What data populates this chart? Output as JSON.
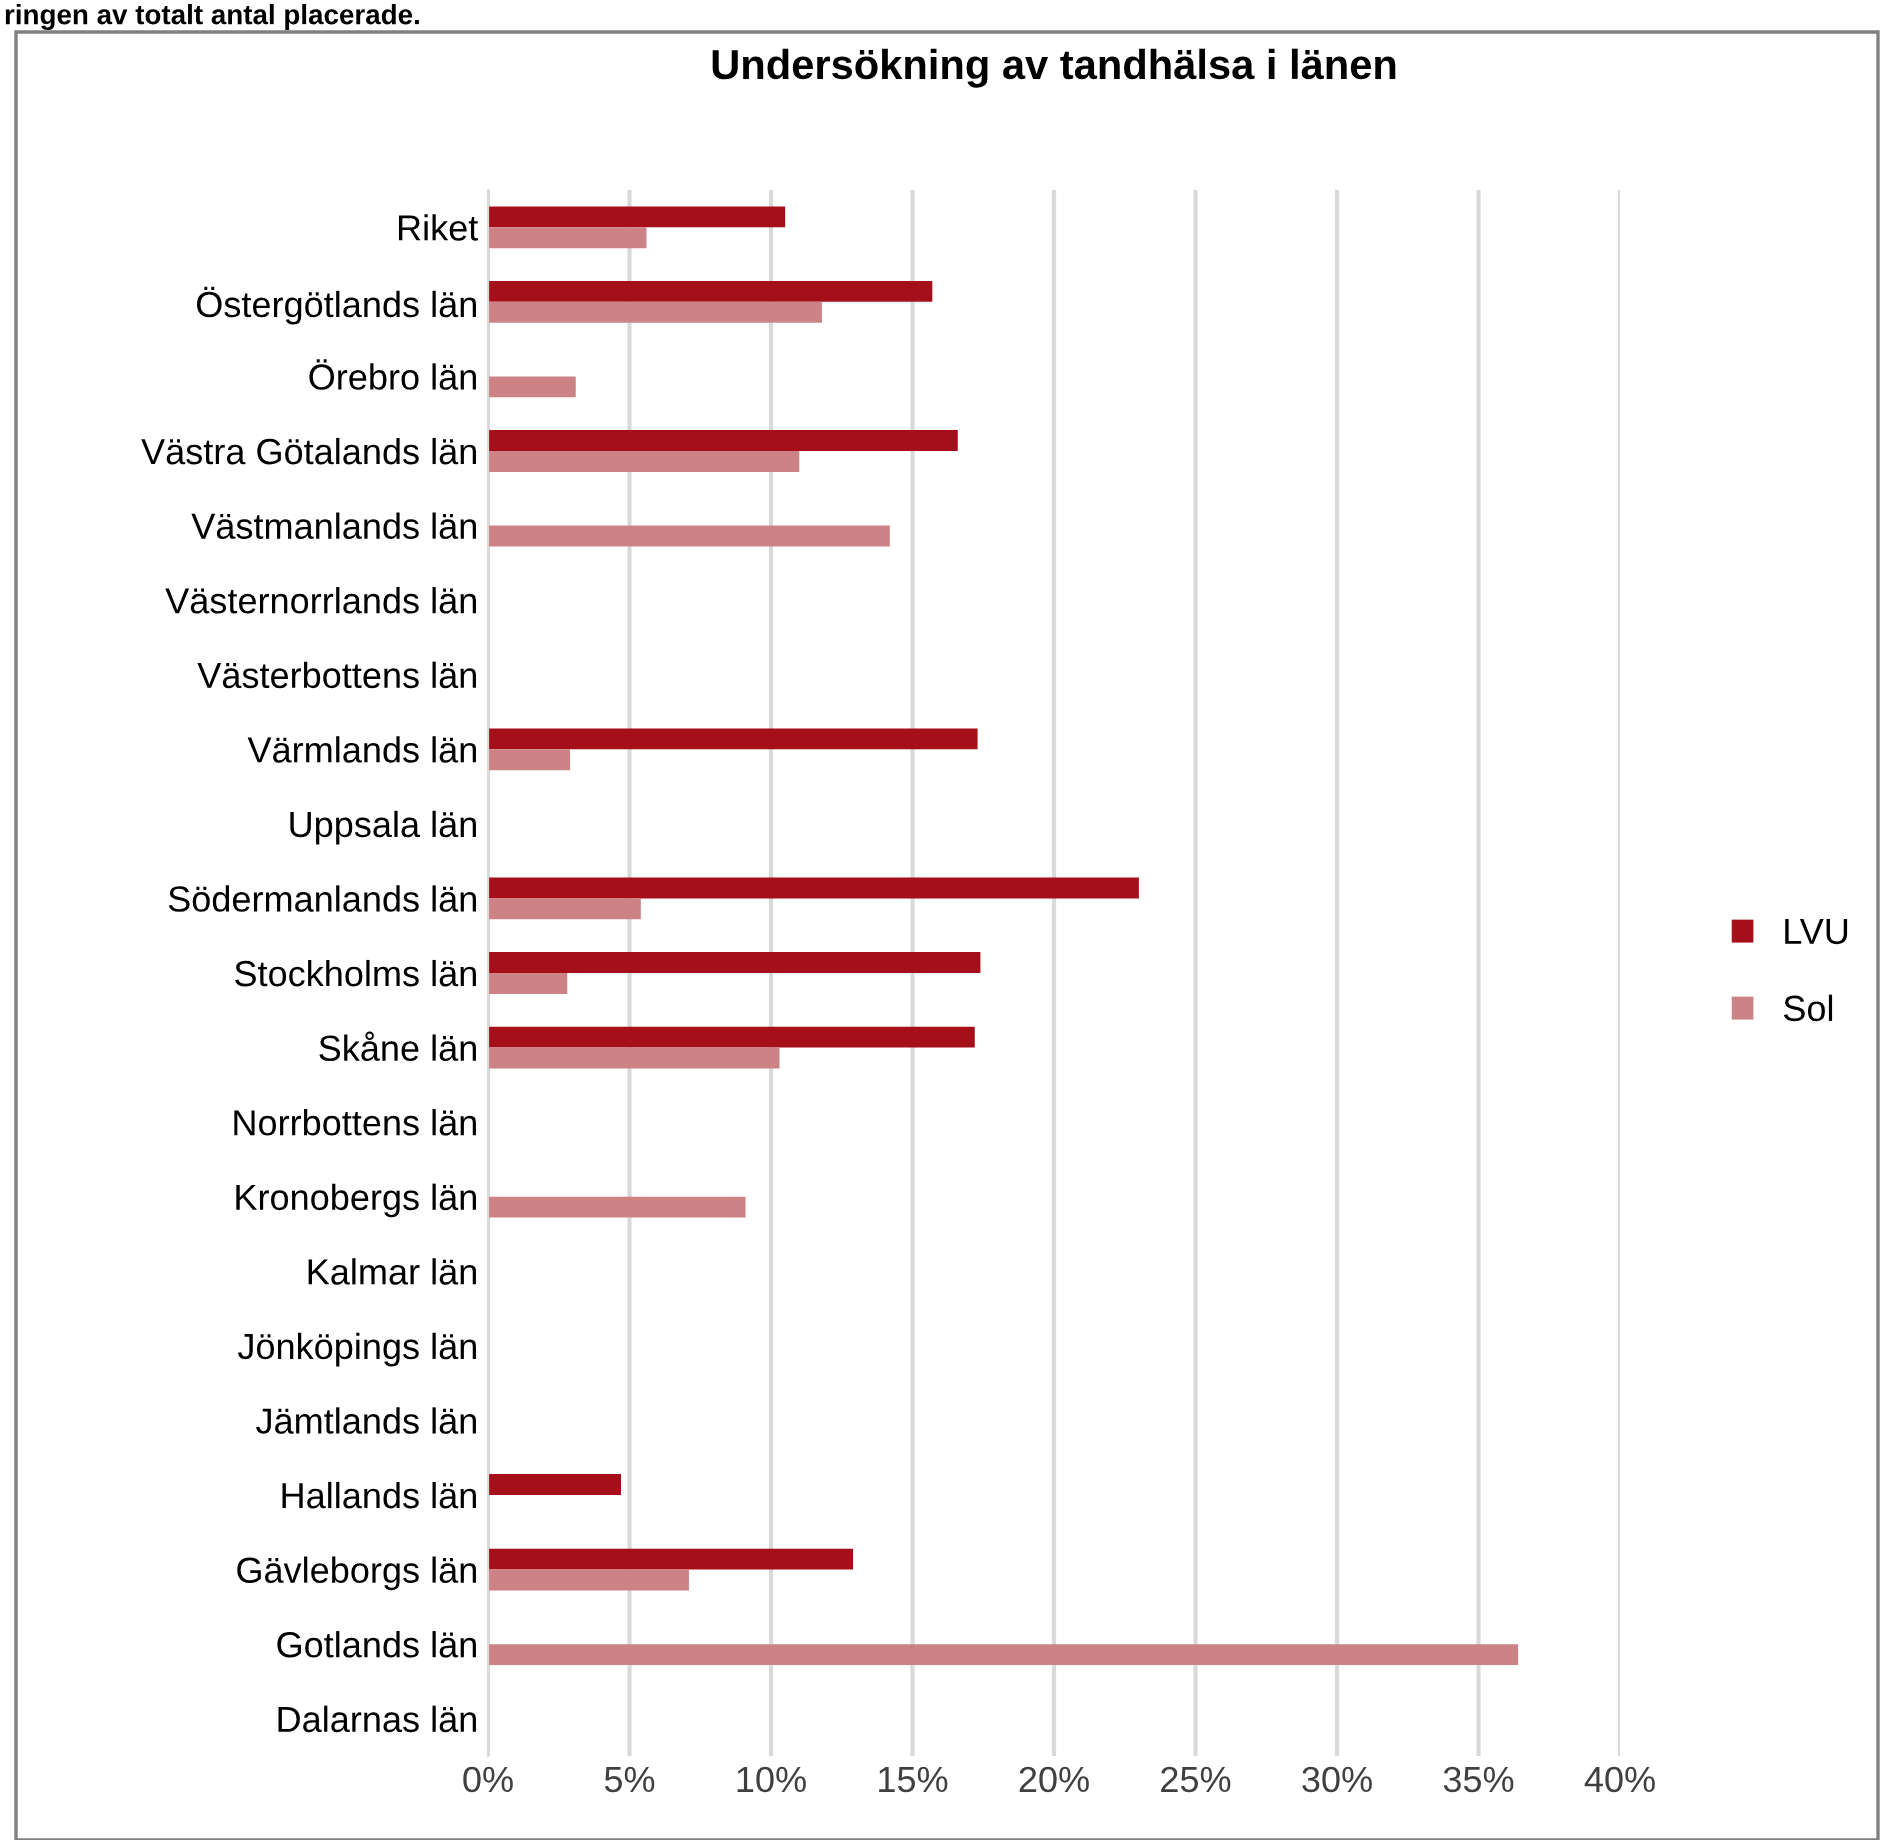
{
  "chart_data": {
    "type": "bar",
    "orientation": "horizontal",
    "title": "Undersökning av tandhälsa i länen",
    "annotations": [
      "ringen av totalt antal placerade."
    ],
    "categories": [
      "Riket",
      "Östergötlands län",
      "Örebro län",
      "Västra Götalands län",
      "Västmanlands län",
      "Västernorrlands län",
      "Västerbottens län",
      "Värmlands län",
      "Uppsala län",
      "Södermanlands län",
      "Stockholms län",
      "Skåne län",
      "Norrbottens län",
      "Kronobergs län",
      "Kalmar län",
      "Jönköpings län",
      "Jämtlands län",
      "Hallands län",
      "Gävleborgs län",
      "Gotlands län",
      "Dalarnas län"
    ],
    "series": [
      {
        "name": "LVU",
        "color": "#a50f1a",
        "values": [
          10.5,
          15.7,
          null,
          16.6,
          null,
          null,
          null,
          17.3,
          null,
          23.0,
          17.4,
          17.2,
          null,
          null,
          null,
          null,
          null,
          4.7,
          12.9,
          null,
          null
        ]
      },
      {
        "name": "Sol",
        "color": "#cd8285",
        "values": [
          5.6,
          11.8,
          3.1,
          11.0,
          14.2,
          null,
          null,
          2.9,
          null,
          5.4,
          2.8,
          10.3,
          null,
          9.1,
          null,
          null,
          null,
          null,
          7.1,
          36.4,
          null
        ]
      }
    ],
    "xlim": [
      0,
      40
    ],
    "xticks": [
      {
        "value": 0,
        "label": "0%"
      },
      {
        "value": 5,
        "label": "5%"
      },
      {
        "value": 10,
        "label": "10%"
      },
      {
        "value": 15,
        "label": "15%"
      },
      {
        "value": 20,
        "label": "20%"
      },
      {
        "value": 25,
        "label": "25%"
      },
      {
        "value": 30,
        "label": "30%"
      },
      {
        "value": 35,
        "label": "35%"
      },
      {
        "value": 40,
        "label": "40%"
      }
    ],
    "grid": "x",
    "legend": "right"
  }
}
